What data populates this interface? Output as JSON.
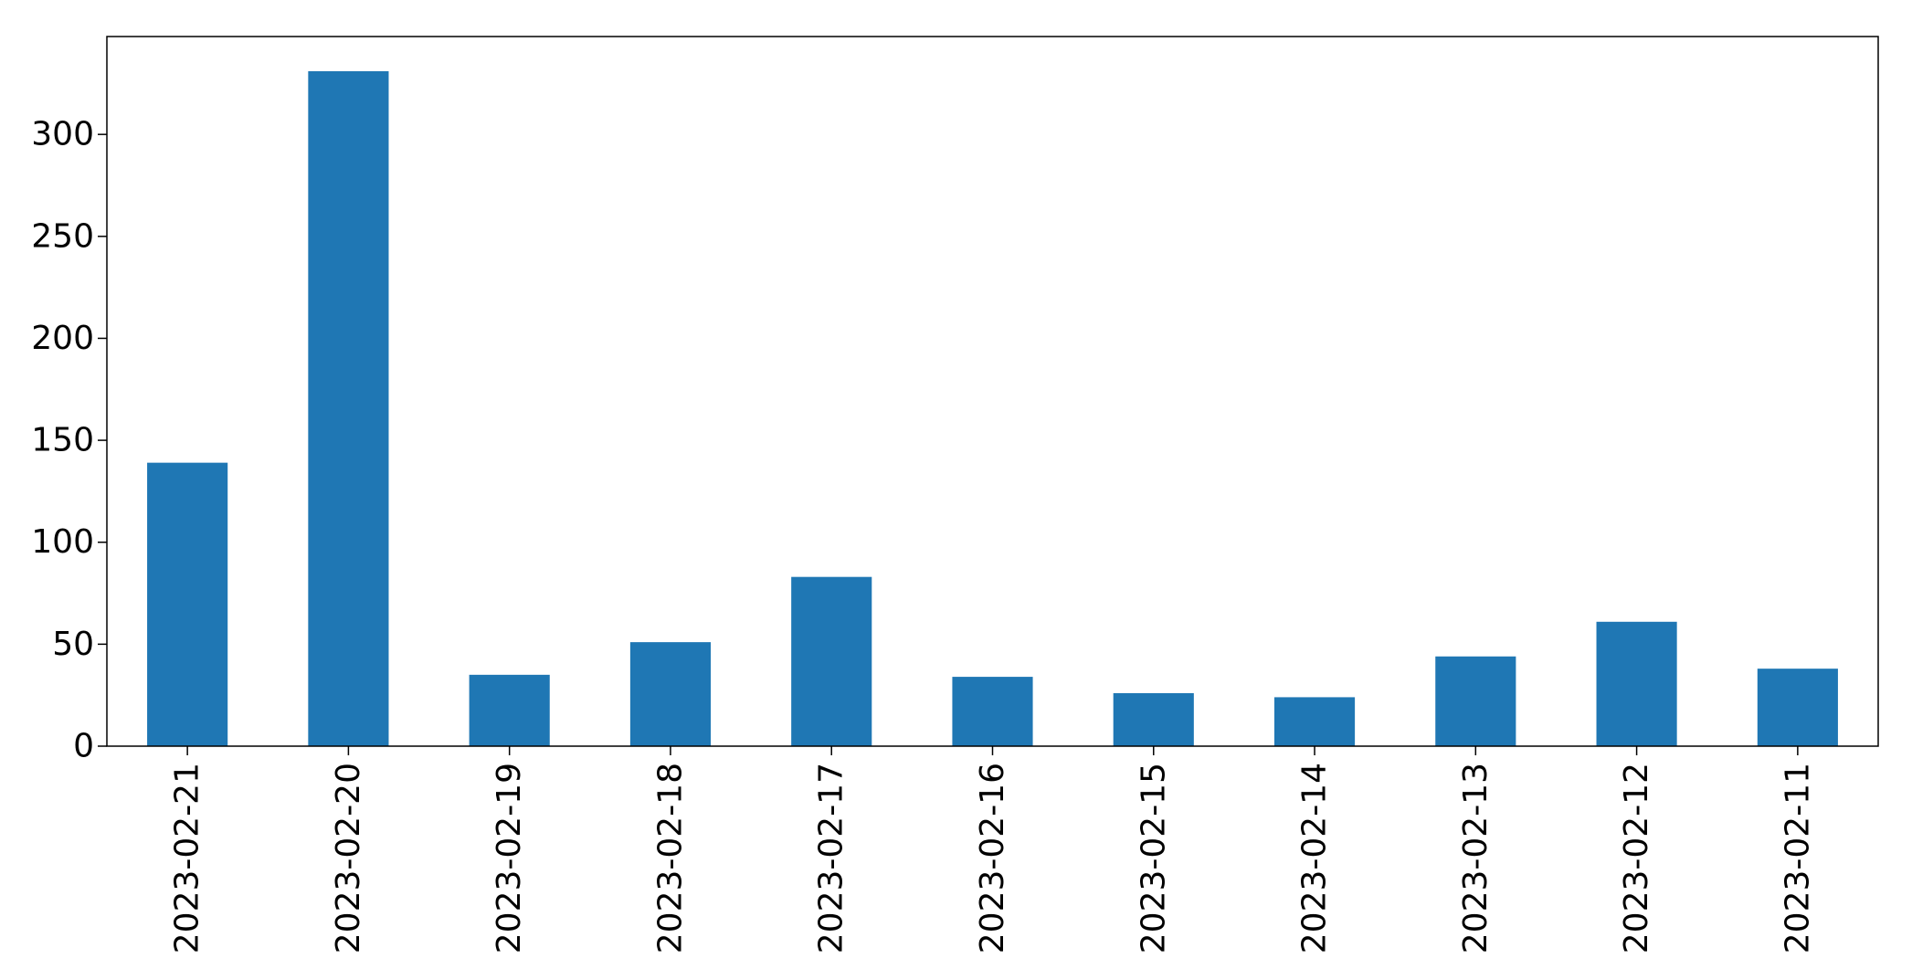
{
  "chart_data": {
    "type": "bar",
    "title": "",
    "xlabel": "",
    "ylabel": "",
    "categories": [
      "2023-02-21",
      "2023-02-20",
      "2023-02-19",
      "2023-02-18",
      "2023-02-17",
      "2023-02-16",
      "2023-02-15",
      "2023-02-14",
      "2023-02-13",
      "2023-02-12",
      "2023-02-11"
    ],
    "values": [
      139,
      331,
      35,
      51,
      83,
      34,
      26,
      24,
      44,
      61,
      38
    ],
    "ylim": [
      0,
      348
    ],
    "yticks": [
      0,
      50,
      100,
      150,
      200,
      250,
      300
    ],
    "ytick_labels": [
      "0",
      "50",
      "100",
      "150",
      "200",
      "250",
      "300"
    ],
    "bar_color": "#1f77b4",
    "grid": false,
    "legend": false
  }
}
